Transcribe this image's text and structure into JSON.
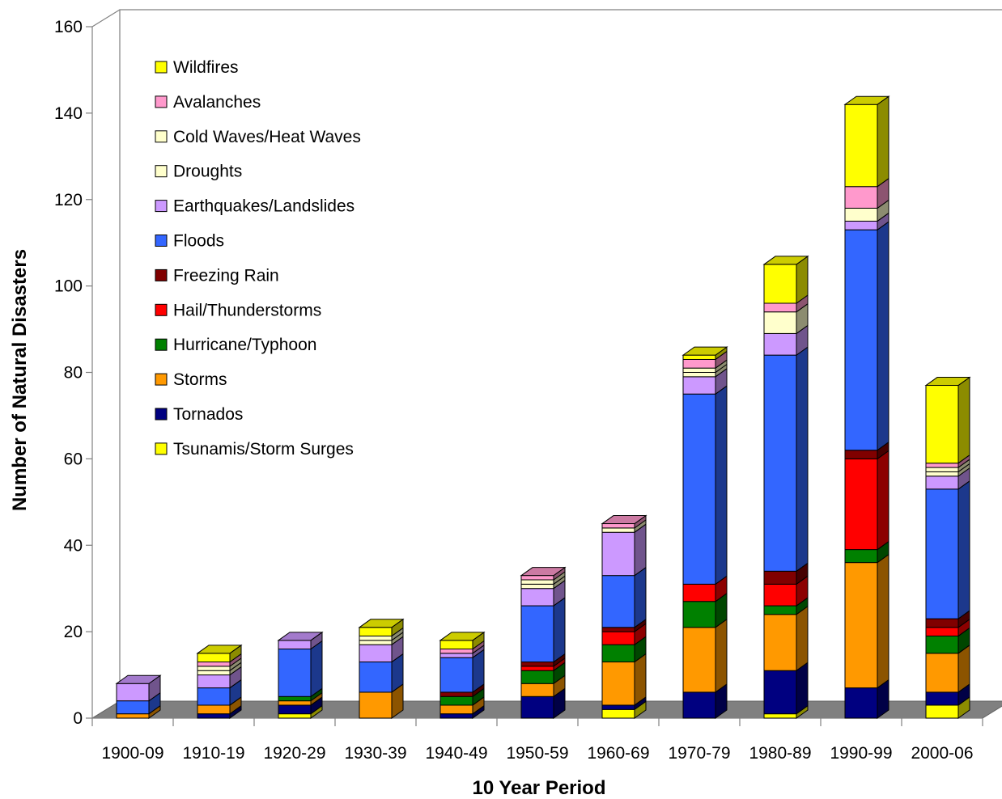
{
  "chart_data": {
    "type": "bar",
    "stacked": true,
    "three_d": true,
    "title": "",
    "xlabel": "10 Year Period",
    "ylabel": "Number of Natural Disasters",
    "ylim": [
      0,
      160
    ],
    "yticks": [
      0,
      20,
      40,
      60,
      80,
      100,
      120,
      140,
      160
    ],
    "grid": false,
    "legend_position": "top-left",
    "categories": [
      "1900-09",
      "1910-19",
      "1920-29",
      "1930-39",
      "1940-49",
      "1950-59",
      "1960-69",
      "1970-79",
      "1980-89",
      "1990-99",
      "2000-06"
    ],
    "stack_order": [
      "Tsunamis/Storm Surges",
      "Tornados",
      "Storms",
      "Hurricane/Typhoon",
      "Hail/Thunderstorms",
      "Freezing Rain",
      "Floods",
      "Earthquakes/Landslides",
      "Droughts",
      "Cold Waves/Heat Waves",
      "Avalanches",
      "Wildfires"
    ],
    "legend_order": [
      "Wildfires",
      "Avalanches",
      "Cold Waves/Heat Waves",
      "Droughts",
      "Earthquakes/Landslides",
      "Floods",
      "Freezing Rain",
      "Hail/Thunderstorms",
      "Hurricane/Typhoon",
      "Storms",
      "Tornados",
      "Tsunamis/Storm Surges"
    ],
    "series": [
      {
        "name": "Tsunamis/Storm Surges",
        "color": "#FFFF00",
        "values": [
          0,
          0,
          1,
          0,
          0,
          0,
          2,
          0,
          1,
          0,
          3
        ]
      },
      {
        "name": "Tornados",
        "color": "#000080",
        "values": [
          0,
          1,
          2,
          0,
          1,
          5,
          1,
          6,
          10,
          7,
          3
        ]
      },
      {
        "name": "Storms",
        "color": "#FF9900",
        "values": [
          1,
          2,
          1,
          6,
          2,
          3,
          10,
          15,
          13,
          29,
          9
        ]
      },
      {
        "name": "Hurricane/Typhoon",
        "color": "#008000",
        "values": [
          0,
          0,
          1,
          0,
          2,
          3,
          4,
          6,
          2,
          3,
          4
        ]
      },
      {
        "name": "Hail/Thunderstorms",
        "color": "#FF0000",
        "values": [
          0,
          0,
          0,
          0,
          0,
          1,
          3,
          4,
          5,
          21,
          2
        ]
      },
      {
        "name": "Freezing Rain",
        "color": "#800000",
        "values": [
          0,
          0,
          0,
          0,
          1,
          1,
          1,
          0,
          3,
          2,
          2
        ]
      },
      {
        "name": "Floods",
        "color": "#3366FF",
        "values": [
          3,
          4,
          11,
          7,
          8,
          13,
          12,
          44,
          50,
          51,
          30
        ]
      },
      {
        "name": "Earthquakes/Landslides",
        "color": "#CC99FF",
        "values": [
          4,
          3,
          2,
          4,
          1,
          4,
          10,
          4,
          5,
          2,
          3
        ]
      },
      {
        "name": "Droughts",
        "color": "#FFFFCC",
        "values": [
          0,
          1,
          0,
          1,
          0,
          1,
          1,
          1,
          5,
          3,
          1
        ]
      },
      {
        "name": "Cold Waves/Heat Waves",
        "color": "#FFFFCC",
        "values": [
          0,
          1,
          0,
          1,
          0,
          1,
          0,
          1,
          0,
          0,
          1
        ]
      },
      {
        "name": "Avalanches",
        "color": "#FF99CC",
        "values": [
          0,
          1,
          0,
          0,
          1,
          1,
          1,
          2,
          2,
          5,
          1
        ]
      },
      {
        "name": "Wildfires",
        "color": "#FFFF00",
        "values": [
          0,
          2,
          0,
          2,
          2,
          0,
          0,
          1,
          9,
          19,
          18
        ]
      }
    ]
  }
}
